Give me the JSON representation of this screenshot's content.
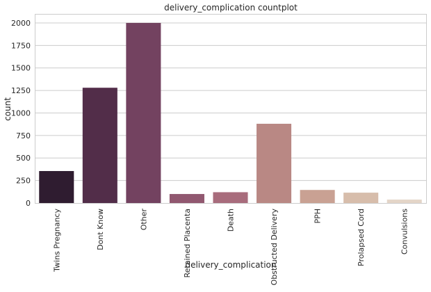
{
  "chart_data": {
    "type": "bar",
    "title": "delivery_complication countplot",
    "xlabel": "delivery_complication",
    "ylabel": "count",
    "categories": [
      "Twins Pregnancy",
      "Dont Know",
      "Other",
      "Retained Placenta",
      "Death",
      "Obstructed Delivery",
      "PPH",
      "Prolapsed Cord",
      "Convulsions"
    ],
    "values": [
      355,
      1280,
      2000,
      100,
      120,
      880,
      145,
      115,
      38
    ],
    "colors": [
      "#2f1c30",
      "#522d49",
      "#734260",
      "#915870",
      "#a86c7c",
      "#b98884",
      "#c9a193",
      "#d7bdab",
      "#e4d5c8"
    ],
    "ylim": [
      0,
      2100
    ],
    "yticks": [
      0,
      250,
      500,
      750,
      1000,
      1250,
      1500,
      1750,
      2000
    ],
    "grid": true,
    "legend": "none"
  }
}
